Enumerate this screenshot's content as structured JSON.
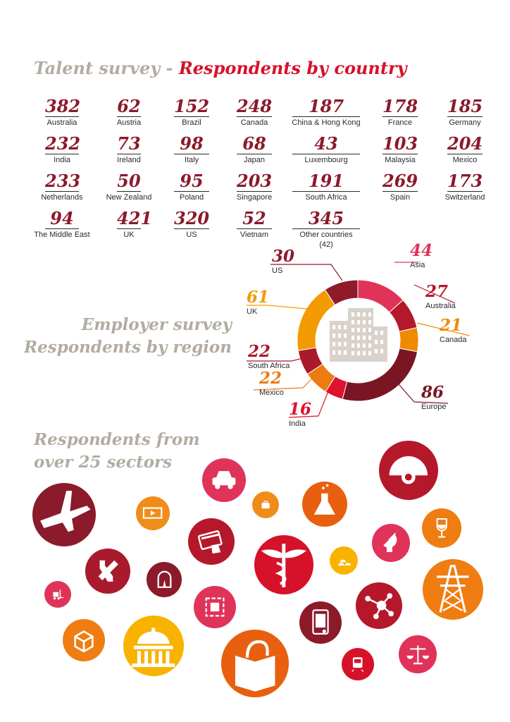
{
  "talent": {
    "title_part1": "Talent survey -",
    "title_part2": "Respondents by country",
    "countries": [
      {
        "value": "382",
        "name": "Australia"
      },
      {
        "value": "62",
        "name": "Austria"
      },
      {
        "value": "152",
        "name": "Brazil"
      },
      {
        "value": "248",
        "name": "Canada"
      },
      {
        "value": "187",
        "name": "China & Hong Kong"
      },
      {
        "value": "178",
        "name": "France"
      },
      {
        "value": "185",
        "name": "Germany"
      },
      {
        "value": "232",
        "name": "India"
      },
      {
        "value": "73",
        "name": "Ireland"
      },
      {
        "value": "98",
        "name": "Italy"
      },
      {
        "value": "68",
        "name": "Japan"
      },
      {
        "value": "43",
        "name": "Luxembourg"
      },
      {
        "value": "103",
        "name": "Malaysia"
      },
      {
        "value": "204",
        "name": "Mexico"
      },
      {
        "value": "233",
        "name": "Netherlands"
      },
      {
        "value": "50",
        "name": "New Zealand"
      },
      {
        "value": "95",
        "name": "Poland"
      },
      {
        "value": "203",
        "name": "Singapore"
      },
      {
        "value": "191",
        "name": "South Africa"
      },
      {
        "value": "269",
        "name": "Spain"
      },
      {
        "value": "173",
        "name": "Switzerland"
      },
      {
        "value": "94",
        "name": "The Middle East"
      },
      {
        "value": "421",
        "name": "UK"
      },
      {
        "value": "320",
        "name": "US"
      },
      {
        "value": "52",
        "name": "Vietnam"
      },
      {
        "value": "345",
        "name": "Other countries",
        "note": "(42)"
      }
    ]
  },
  "employer": {
    "title_line1": "Employer survey",
    "title_line2": "Respondents by region",
    "regions": [
      {
        "value": 44,
        "name": "Asia",
        "color": "#e0335a"
      },
      {
        "value": 27,
        "name": "Australia",
        "color": "#b5182b"
      },
      {
        "value": 21,
        "name": "Canada",
        "color": "#ef8a00"
      },
      {
        "value": 86,
        "name": "Europe",
        "color": "#7a1623"
      },
      {
        "value": 16,
        "name": "India",
        "color": "#e0102f"
      },
      {
        "value": 22,
        "name": "Mexico",
        "color": "#ee7a12"
      },
      {
        "value": 22,
        "name": "South Africa",
        "color": "#a81a2c"
      },
      {
        "value": 61,
        "name": "UK",
        "color": "#f29a00"
      },
      {
        "value": 30,
        "name": "US",
        "color": "#8e1a2a"
      }
    ]
  },
  "sectors": {
    "title_line1": "Respondents from",
    "title_line2": "over 25 sectors",
    "icons": [
      {
        "name": "airplane-icon",
        "color": "#8b1a2b"
      },
      {
        "name": "car-icon",
        "color": "#e0335a"
      },
      {
        "name": "film-icon",
        "color": "#f08c1a"
      },
      {
        "name": "briefcase-icon",
        "color": "#f08c1a"
      },
      {
        "name": "flask-icon",
        "color": "#e8600f"
      },
      {
        "name": "mining-helmet-icon",
        "color": "#b5182b"
      },
      {
        "name": "wine-glass-icon",
        "color": "#ef7d12"
      },
      {
        "name": "credit-card-icon",
        "color": "#b5182b"
      },
      {
        "name": "medical-caduceus-icon",
        "color": "#d6112a"
      },
      {
        "name": "gold-bars-icon",
        "color": "#f9b200"
      },
      {
        "name": "satellite-dish-icon",
        "color": "#e0335a"
      },
      {
        "name": "tools-icon",
        "color": "#a81a2c"
      },
      {
        "name": "tunnel-road-icon",
        "color": "#8b1a2b"
      },
      {
        "name": "forklift-icon",
        "color": "#e0335a"
      },
      {
        "name": "circuit-icon",
        "color": "#e0335a"
      },
      {
        "name": "mobile-phone-icon",
        "color": "#8b1a2b"
      },
      {
        "name": "molecule-icon",
        "color": "#b5182b"
      },
      {
        "name": "power-pylon-icon",
        "color": "#ef7d12"
      },
      {
        "name": "box-icon",
        "color": "#ef7d12"
      },
      {
        "name": "government-building-icon",
        "color": "#f9b200"
      },
      {
        "name": "shopping-bag-icon",
        "color": "#e8600f"
      },
      {
        "name": "train-icon",
        "color": "#d6112a"
      },
      {
        "name": "scales-icon",
        "color": "#e0335a"
      }
    ]
  }
}
